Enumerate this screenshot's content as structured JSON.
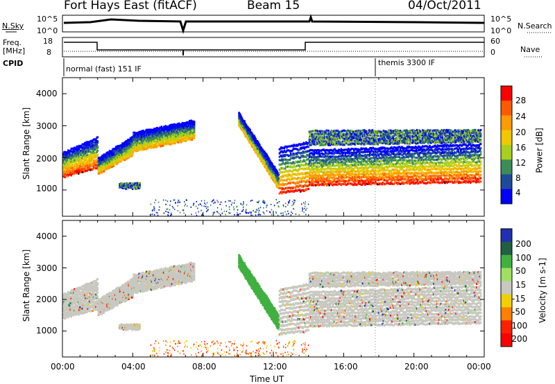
{
  "header": {
    "site": "Fort Hays East (fitACF)",
    "beam": "Beam 15",
    "date": "04/Oct/2011"
  },
  "sky_panel": {
    "left_label": "N.Sky",
    "left_ticks": [
      "10^5",
      "10^0"
    ],
    "right_ticks": [
      "10^5",
      "10^0"
    ],
    "right_label": "N.Search"
  },
  "freq_panel": {
    "left_label_1": "Freq.",
    "left_label_2": "[MHz]",
    "left_ticks": [
      "18",
      "8"
    ],
    "right_ticks": [
      "60",
      "0"
    ],
    "right_label": "Nave"
  },
  "cpid_panel": {
    "label": "CPID",
    "mode_1": "normal (fast) 151 IF",
    "mode_2": "themis 3300 IF"
  },
  "chart_data": [
    {
      "type": "heatmap",
      "name": "power",
      "ylabel": "Slant Range [km]",
      "yticks": [
        "4000",
        "3000",
        "2000",
        "1000"
      ],
      "ylim": [
        180,
        4500
      ],
      "colorbar_label": "Power [dB]",
      "colorbar_ticks": [
        "28",
        "24",
        "20",
        "16",
        "12",
        "8",
        "4"
      ],
      "colors": [
        "#ff0000",
        "#ff5a00",
        "#ff9a00",
        "#f0c800",
        "#a8d020",
        "#3c8c5a",
        "#1e4a9a",
        "#0000ff"
      ]
    },
    {
      "type": "heatmap",
      "name": "velocity",
      "ylabel": "Slant Range [km]",
      "yticks": [
        "4000",
        "3000",
        "2000",
        "1000"
      ],
      "ylim": [
        180,
        4500
      ],
      "colorbar_label": "Velocity [m s-1]",
      "colorbar_ticks": [
        "200",
        "100",
        "50",
        "15",
        "-15",
        "-50",
        "-100",
        "-200"
      ],
      "colors": [
        "#2030b0",
        "#206040",
        "#40b040",
        "#a0e060",
        "#c8c8c0",
        "#f0d000",
        "#ff8000",
        "#ff2000",
        "#ff0000"
      ]
    }
  ],
  "time_axis": {
    "xlabel": "Time UT",
    "ticks": [
      "00:00",
      "04:00",
      "08:00",
      "12:00",
      "16:00",
      "20:00",
      "00:00"
    ]
  }
}
